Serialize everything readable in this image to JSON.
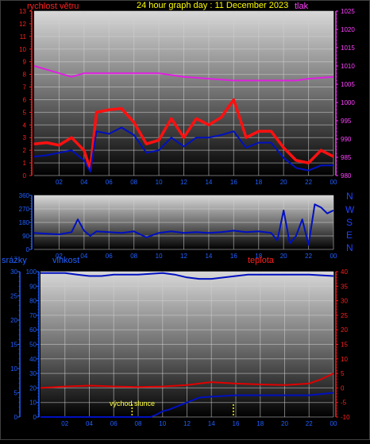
{
  "header": {
    "left_label": "rychlost větru",
    "title": "24 hour graph day : 11 December 2023",
    "right_label": "tlak"
  },
  "wind_panel": {
    "compass": [
      "N",
      "W",
      "S",
      "E",
      "N"
    ]
  },
  "lower_header": {
    "rain_label": "srážky",
    "humidity_label": "vlhkost",
    "temp_label": "teplota"
  },
  "annotation": "východ slunce",
  "colors": {
    "wind_speed": "#ff1010",
    "wind_avg": "#0010c0",
    "pressure": "#e020e0",
    "direction": "#0010c0",
    "humidity": "#0010c0",
    "temperature": "#e00000",
    "rain": "#0010c0",
    "title": "#ffff00",
    "sunrise": "#ffff00"
  },
  "chart_data": [
    {
      "type": "line",
      "name": "wind speed and pressure",
      "x_ticks": [
        "02",
        "04",
        "06",
        "08",
        "10",
        "12",
        "14",
        "16",
        "18",
        "20",
        "22",
        "00"
      ],
      "y_left": {
        "label": "rychlost větru",
        "ylim": [
          0,
          13
        ],
        "ticks": [
          0,
          1,
          2,
          3,
          4,
          5,
          6,
          7,
          8,
          9,
          10,
          11,
          12,
          13
        ]
      },
      "y_right": {
        "label": "tlak",
        "ylim": [
          980,
          1025
        ],
        "ticks": [
          980,
          985,
          990,
          995,
          1000,
          1005,
          1010,
          1015,
          1020,
          1025
        ]
      },
      "series": [
        {
          "name": "rychlost větru",
          "axis": "left",
          "x": [
            0,
            1,
            2,
            3,
            4,
            4.5,
            5,
            6,
            7,
            8,
            9,
            10,
            11,
            12,
            13,
            14,
            15,
            16,
            17,
            18,
            19,
            20,
            21,
            22,
            23,
            24
          ],
          "values": [
            2.5,
            2.6,
            2.4,
            3.0,
            2.0,
            0.5,
            5.0,
            5.2,
            5.3,
            4.2,
            2.5,
            2.8,
            4.5,
            3.0,
            4.5,
            4.0,
            4.6,
            6.0,
            3.0,
            3.5,
            3.5,
            2.2,
            1.2,
            1.0,
            2.0,
            1.5
          ]
        },
        {
          "name": "rychlost větru průměr",
          "axis": "left",
          "x": [
            0,
            1,
            2,
            3,
            4,
            4.5,
            5,
            6,
            7,
            8,
            9,
            10,
            11,
            12,
            13,
            14,
            15,
            16,
            17,
            18,
            19,
            20,
            21,
            22,
            23,
            24
          ],
          "values": [
            1.5,
            1.6,
            1.8,
            2.0,
            1.2,
            0.3,
            3.5,
            3.3,
            3.8,
            3.2,
            1.8,
            2.0,
            3.0,
            2.3,
            3.0,
            3.0,
            3.2,
            3.5,
            2.2,
            2.6,
            2.6,
            1.4,
            0.6,
            0.4,
            0.8,
            0.8
          ]
        },
        {
          "name": "tlak",
          "axis": "right",
          "x": [
            0,
            1,
            2,
            3,
            4,
            6,
            8,
            10,
            12,
            14,
            16,
            18,
            20,
            21,
            22,
            24
          ],
          "values": [
            1010,
            1009,
            1008,
            1007,
            1008,
            1008,
            1008,
            1008,
            1007,
            1006.5,
            1006,
            1006,
            1006,
            1006,
            1006.5,
            1007
          ]
        }
      ]
    },
    {
      "type": "line",
      "name": "wind direction",
      "x_ticks": [
        "02",
        "04",
        "06",
        "08",
        "10",
        "12",
        "14",
        "16",
        "18",
        "20",
        "22",
        "00"
      ],
      "ylim": [
        0,
        360
      ],
      "y_ticks": [
        0,
        90,
        180,
        270,
        360
      ],
      "series": [
        {
          "name": "direction",
          "x": [
            0,
            1,
            2,
            3,
            3.5,
            4,
            4.5,
            5,
            6,
            7,
            8,
            9,
            10,
            11,
            12,
            13,
            14,
            15,
            16,
            17,
            18,
            19,
            19.5,
            20,
            20.5,
            21,
            21.5,
            22,
            22.5,
            23,
            23.5,
            24
          ],
          "values": [
            110,
            105,
            100,
            115,
            200,
            125,
            90,
            120,
            115,
            110,
            120,
            80,
            110,
            120,
            110,
            115,
            110,
            115,
            125,
            115,
            120,
            110,
            60,
            260,
            40,
            90,
            200,
            30,
            300,
            280,
            240,
            260
          ]
        }
      ]
    },
    {
      "type": "line",
      "name": "rain humidity temperature",
      "x_ticks": [
        "02",
        "04",
        "06",
        "08",
        "10",
        "12",
        "14",
        "16",
        "18",
        "20",
        "22",
        "00"
      ],
      "y_rain": {
        "label": "srážky",
        "ylim": [
          0,
          30
        ],
        "ticks": [
          0,
          5,
          10,
          15,
          20,
          25,
          30
        ]
      },
      "y_humidity": {
        "label": "vlhkost",
        "ylim": [
          0,
          100
        ],
        "ticks": [
          0,
          10,
          20,
          30,
          40,
          50,
          60,
          70,
          80,
          90,
          100
        ]
      },
      "y_temp": {
        "label": "teplota",
        "ylim": [
          -10,
          40
        ],
        "ticks": [
          -10,
          -5,
          0,
          5,
          10,
          15,
          20,
          25,
          30,
          35,
          40
        ]
      },
      "series": [
        {
          "name": "vlhkost",
          "axis": "humidity",
          "x": [
            0,
            2,
            3,
            4,
            5,
            6,
            8,
            10,
            11,
            12,
            13,
            14,
            16,
            17,
            18,
            20,
            22,
            24
          ],
          "values": [
            99,
            99,
            98,
            97,
            97,
            98,
            98,
            99,
            98,
            96,
            95,
            95,
            97,
            98,
            98,
            98,
            98,
            97
          ]
        },
        {
          "name": "teplota",
          "axis": "temp",
          "x": [
            0,
            2,
            4,
            6,
            8,
            10,
            12,
            14,
            16,
            18,
            20,
            22,
            23,
            24
          ],
          "values": [
            0,
            0.5,
            0.8,
            0.5,
            0.3,
            0.5,
            1.0,
            2.0,
            1.5,
            1.2,
            1.0,
            1.5,
            3.0,
            5.0
          ]
        },
        {
          "name": "srážky",
          "axis": "rain",
          "x": [
            0,
            9,
            9.5,
            10,
            10.5,
            11,
            12,
            13,
            14,
            16,
            18,
            20,
            22,
            24
          ],
          "values": [
            0,
            0,
            0.5,
            1.2,
            1.5,
            2.0,
            3.0,
            4.0,
            4.2,
            4.5,
            4.5,
            4.5,
            4.5,
            5.0
          ]
        }
      ],
      "sunrise_hours": [
        7.5,
        15.8
      ]
    }
  ]
}
